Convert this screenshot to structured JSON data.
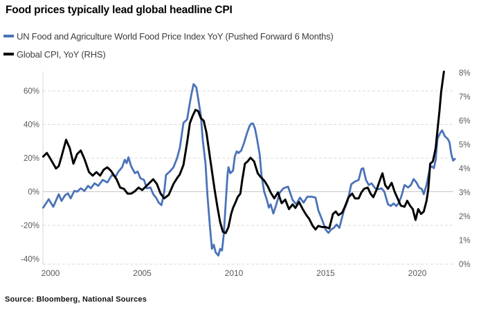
{
  "title": "Food prices typically lead global headline CPI",
  "legend": [
    {
      "label": "UN Food and Agriculture World Food Price Index YoY (Pushed Forward 6 Months)",
      "color": "#4a72b8"
    },
    {
      "label": "Global CPI, YoY (RHS)",
      "color": "#000000"
    }
  ],
  "source": "Source: Bloomberg, National Sources",
  "chart_data": {
    "type": "line",
    "title": "Food prices typically lead global headline CPI",
    "x_axis": {
      "ticks": [
        2000,
        2005,
        2010,
        2015,
        2020
      ],
      "range": [
        1999.6,
        2022.2
      ]
    },
    "left_axis": {
      "tick_labels": [
        "60%",
        "40%",
        "20%",
        "0%",
        "-20%",
        "-40%"
      ],
      "tick_values": [
        60,
        40,
        20,
        0,
        -20,
        -40
      ],
      "unit": "% YoY",
      "grid_dashed_values": [
        60,
        40,
        20,
        -20
      ],
      "zero_line_value": 0
    },
    "right_axis": {
      "tick_labels": [
        "8%",
        "7%",
        "6%",
        "5%",
        "4%",
        "3%",
        "2%",
        "1%",
        "0%"
      ],
      "tick_values": [
        8,
        7,
        6,
        5,
        4,
        3,
        2,
        1,
        0
      ],
      "unit": "% YoY",
      "grid_dashed_values": [
        0
      ]
    },
    "legend_position": "top-left",
    "grid": "horizontal-dashed",
    "series": [
      {
        "name": "UN Food and Agriculture World Food Price Index YoY (Pushed Forward 6 Months)",
        "axis": "left",
        "color": "#4a72b8",
        "stroke_width": 2.8,
        "points": [
          [
            1999.6,
            -9.5
          ],
          [
            1999.9,
            -4.5
          ],
          [
            2000.15,
            -9
          ],
          [
            2000.45,
            -1.5
          ],
          [
            2000.6,
            -5.5
          ],
          [
            2000.8,
            -2
          ],
          [
            2000.95,
            -1
          ],
          [
            2001.1,
            -4
          ],
          [
            2001.3,
            0.5
          ],
          [
            2001.45,
            0
          ],
          [
            2001.65,
            2
          ],
          [
            2001.85,
            0.5
          ],
          [
            2002.05,
            3.5
          ],
          [
            2002.2,
            2
          ],
          [
            2002.4,
            5
          ],
          [
            2002.6,
            3.5
          ],
          [
            2002.85,
            7
          ],
          [
            2003.1,
            5.5
          ],
          [
            2003.35,
            10
          ],
          [
            2003.55,
            9
          ],
          [
            2003.7,
            12
          ],
          [
            2003.9,
            14.5
          ],
          [
            2004.05,
            19
          ],
          [
            2004.15,
            17
          ],
          [
            2004.25,
            20.5
          ],
          [
            2004.4,
            15
          ],
          [
            2004.6,
            11
          ],
          [
            2004.75,
            12
          ],
          [
            2004.9,
            8
          ],
          [
            2005.1,
            7
          ],
          [
            2005.25,
            2
          ],
          [
            2005.45,
            2.5
          ],
          [
            2005.6,
            -1.5
          ],
          [
            2005.75,
            -3.5
          ],
          [
            2005.9,
            -6.5
          ],
          [
            2006.05,
            -8
          ],
          [
            2006.2,
            0
          ],
          [
            2006.3,
            10
          ],
          [
            2006.5,
            12
          ],
          [
            2006.7,
            14.5
          ],
          [
            2006.9,
            20
          ],
          [
            2007.05,
            26
          ],
          [
            2007.25,
            41
          ],
          [
            2007.45,
            43
          ],
          [
            2007.6,
            53
          ],
          [
            2007.7,
            59
          ],
          [
            2007.8,
            64
          ],
          [
            2007.95,
            62
          ],
          [
            2008.05,
            55.5
          ],
          [
            2008.2,
            45
          ],
          [
            2008.3,
            31
          ],
          [
            2008.45,
            17
          ],
          [
            2008.55,
            -1.5
          ],
          [
            2008.7,
            -22
          ],
          [
            2008.8,
            -34
          ],
          [
            2008.9,
            -31.5
          ],
          [
            2009.0,
            -36
          ],
          [
            2009.15,
            -38
          ],
          [
            2009.25,
            -34
          ],
          [
            2009.35,
            -35
          ],
          [
            2009.45,
            -25
          ],
          [
            2009.55,
            -7
          ],
          [
            2009.65,
            10
          ],
          [
            2009.7,
            14.5
          ],
          [
            2009.8,
            11
          ],
          [
            2009.95,
            12.5
          ],
          [
            2010.05,
            21
          ],
          [
            2010.15,
            24
          ],
          [
            2010.25,
            23
          ],
          [
            2010.4,
            24.5
          ],
          [
            2010.55,
            29
          ],
          [
            2010.7,
            34.5
          ],
          [
            2010.85,
            39
          ],
          [
            2010.95,
            40.5
          ],
          [
            2011.05,
            40.5
          ],
          [
            2011.15,
            37.5
          ],
          [
            2011.25,
            32
          ],
          [
            2011.4,
            22.5
          ],
          [
            2011.5,
            10
          ],
          [
            2011.65,
            0
          ],
          [
            2011.8,
            -5
          ],
          [
            2011.9,
            -9.5
          ],
          [
            2012.0,
            -7.5
          ],
          [
            2012.15,
            -13
          ],
          [
            2012.3,
            -8
          ],
          [
            2012.5,
            -0.5
          ],
          [
            2012.7,
            2
          ],
          [
            2012.95,
            3
          ],
          [
            2013.2,
            -5
          ],
          [
            2013.4,
            -7.5
          ],
          [
            2013.6,
            -3.5
          ],
          [
            2013.8,
            -6.5
          ],
          [
            2014.0,
            -3
          ],
          [
            2014.25,
            -3
          ],
          [
            2014.45,
            -3.5
          ],
          [
            2014.6,
            -11
          ],
          [
            2014.8,
            -16.5
          ],
          [
            2015.0,
            -22.5
          ],
          [
            2015.15,
            -24.5
          ],
          [
            2015.3,
            -22.5
          ],
          [
            2015.45,
            -21.5
          ],
          [
            2015.6,
            -19.5
          ],
          [
            2015.75,
            -21.5
          ],
          [
            2016.0,
            -11
          ],
          [
            2016.2,
            -5.5
          ],
          [
            2016.4,
            4.5
          ],
          [
            2016.6,
            6
          ],
          [
            2016.8,
            7
          ],
          [
            2016.95,
            13.5
          ],
          [
            2017.05,
            14
          ],
          [
            2017.2,
            7
          ],
          [
            2017.35,
            4
          ],
          [
            2017.5,
            5
          ],
          [
            2017.7,
            2
          ],
          [
            2017.9,
            1.5
          ],
          [
            2018.05,
            2
          ],
          [
            2018.2,
            0
          ],
          [
            2018.4,
            -7.5
          ],
          [
            2018.55,
            -8.5
          ],
          [
            2018.7,
            -7
          ],
          [
            2018.85,
            -8.5
          ],
          [
            2019.0,
            -6.5
          ],
          [
            2019.15,
            -2
          ],
          [
            2019.3,
            4
          ],
          [
            2019.5,
            2.5
          ],
          [
            2019.65,
            4
          ],
          [
            2019.8,
            7.5
          ],
          [
            2019.95,
            5.5
          ],
          [
            2020.1,
            2.5
          ],
          [
            2020.25,
            1.5
          ],
          [
            2020.35,
            -1.5
          ],
          [
            2020.5,
            4
          ],
          [
            2020.6,
            9.5
          ],
          [
            2020.7,
            14.5
          ],
          [
            2020.8,
            15
          ],
          [
            2020.9,
            14
          ],
          [
            2021.0,
            19
          ],
          [
            2021.1,
            31.5
          ],
          [
            2021.25,
            35
          ],
          [
            2021.35,
            36.5
          ],
          [
            2021.5,
            33
          ],
          [
            2021.65,
            31.5
          ],
          [
            2021.75,
            29.5
          ],
          [
            2021.85,
            22.5
          ],
          [
            2021.95,
            18.5
          ],
          [
            2022.05,
            19.5
          ]
        ]
      },
      {
        "name": "Global CPI, YoY (RHS)",
        "axis": "right",
        "color": "#000000",
        "stroke_width": 3,
        "points": [
          [
            1999.6,
            4.5
          ],
          [
            1999.8,
            4.65
          ],
          [
            2000.0,
            4.4
          ],
          [
            2000.3,
            4.0
          ],
          [
            2000.45,
            4.1
          ],
          [
            2000.6,
            4.5
          ],
          [
            2000.85,
            5.2
          ],
          [
            2001.05,
            4.85
          ],
          [
            2001.25,
            4.2
          ],
          [
            2001.45,
            4.6
          ],
          [
            2001.65,
            4.75
          ],
          [
            2001.85,
            4.4
          ],
          [
            2002.1,
            3.85
          ],
          [
            2002.3,
            3.7
          ],
          [
            2002.5,
            3.85
          ],
          [
            2002.7,
            3.7
          ],
          [
            2002.9,
            3.95
          ],
          [
            2003.1,
            4.05
          ],
          [
            2003.3,
            3.9
          ],
          [
            2003.6,
            3.55
          ],
          [
            2003.8,
            3.2
          ],
          [
            2004.0,
            3.15
          ],
          [
            2004.2,
            2.95
          ],
          [
            2004.4,
            2.95
          ],
          [
            2004.6,
            3.05
          ],
          [
            2004.8,
            3.2
          ],
          [
            2005.0,
            3.1
          ],
          [
            2005.2,
            3.25
          ],
          [
            2005.4,
            3.4
          ],
          [
            2005.6,
            3.55
          ],
          [
            2005.8,
            3.35
          ],
          [
            2006.0,
            2.95
          ],
          [
            2006.2,
            2.75
          ],
          [
            2006.45,
            2.9
          ],
          [
            2006.7,
            3.35
          ],
          [
            2006.9,
            3.6
          ],
          [
            2007.05,
            3.75
          ],
          [
            2007.25,
            4.15
          ],
          [
            2007.45,
            5.1
          ],
          [
            2007.6,
            5.9
          ],
          [
            2007.75,
            6.2
          ],
          [
            2007.9,
            6.45
          ],
          [
            2008.05,
            6.4
          ],
          [
            2008.2,
            6.1
          ],
          [
            2008.35,
            6.0
          ],
          [
            2008.5,
            5.5
          ],
          [
            2008.65,
            4.7
          ],
          [
            2008.8,
            3.9
          ],
          [
            2008.95,
            3.1
          ],
          [
            2009.1,
            2.4
          ],
          [
            2009.25,
            1.75
          ],
          [
            2009.4,
            1.35
          ],
          [
            2009.55,
            1.3
          ],
          [
            2009.7,
            1.55
          ],
          [
            2009.85,
            2.1
          ],
          [
            2009.95,
            2.35
          ],
          [
            2010.1,
            2.6
          ],
          [
            2010.2,
            2.8
          ],
          [
            2010.35,
            2.95
          ],
          [
            2010.45,
            3.5
          ],
          [
            2010.6,
            4.2
          ],
          [
            2010.75,
            4.3
          ],
          [
            2010.9,
            4.45
          ],
          [
            2011.1,
            4.3
          ],
          [
            2011.3,
            3.8
          ],
          [
            2011.45,
            3.65
          ],
          [
            2011.65,
            3.5
          ],
          [
            2011.85,
            3.25
          ],
          [
            2012.0,
            3.0
          ],
          [
            2012.2,
            2.75
          ],
          [
            2012.4,
            3.0
          ],
          [
            2012.6,
            2.55
          ],
          [
            2012.8,
            2.7
          ],
          [
            2013.0,
            2.3
          ],
          [
            2013.2,
            2.5
          ],
          [
            2013.35,
            2.35
          ],
          [
            2013.55,
            2.6
          ],
          [
            2013.75,
            2.3
          ],
          [
            2013.95,
            2.05
          ],
          [
            2014.1,
            1.9
          ],
          [
            2014.3,
            1.6
          ],
          [
            2014.45,
            1.45
          ],
          [
            2014.6,
            1.6
          ],
          [
            2014.8,
            1.55
          ],
          [
            2015.0,
            1.55
          ],
          [
            2015.2,
            1.5
          ],
          [
            2015.4,
            2.1
          ],
          [
            2015.55,
            2.2
          ],
          [
            2015.7,
            2.05
          ],
          [
            2015.9,
            2.15
          ],
          [
            2016.05,
            2.4
          ],
          [
            2016.25,
            2.8
          ],
          [
            2016.45,
            2.95
          ],
          [
            2016.6,
            2.75
          ],
          [
            2016.8,
            2.75
          ],
          [
            2016.95,
            3.0
          ],
          [
            2017.1,
            3.15
          ],
          [
            2017.3,
            3.2
          ],
          [
            2017.45,
            2.95
          ],
          [
            2017.6,
            2.8
          ],
          [
            2017.8,
            3.15
          ],
          [
            2018.0,
            3.6
          ],
          [
            2018.1,
            3.8
          ],
          [
            2018.25,
            3.3
          ],
          [
            2018.4,
            3.15
          ],
          [
            2018.6,
            3.4
          ],
          [
            2018.75,
            3.05
          ],
          [
            2018.95,
            2.7
          ],
          [
            2019.1,
            2.45
          ],
          [
            2019.3,
            2.4
          ],
          [
            2019.45,
            2.65
          ],
          [
            2019.6,
            2.45
          ],
          [
            2019.75,
            2.3
          ],
          [
            2019.9,
            1.85
          ],
          [
            2020.05,
            2.3
          ],
          [
            2020.2,
            2.1
          ],
          [
            2020.35,
            2.2
          ],
          [
            2020.5,
            2.65
          ],
          [
            2020.6,
            3.15
          ],
          [
            2020.7,
            4.2
          ],
          [
            2020.85,
            4.3
          ],
          [
            2021.0,
            4.85
          ],
          [
            2021.1,
            5.6
          ],
          [
            2021.2,
            6.35
          ],
          [
            2021.3,
            7.2
          ],
          [
            2021.45,
            8.05
          ]
        ]
      }
    ]
  }
}
